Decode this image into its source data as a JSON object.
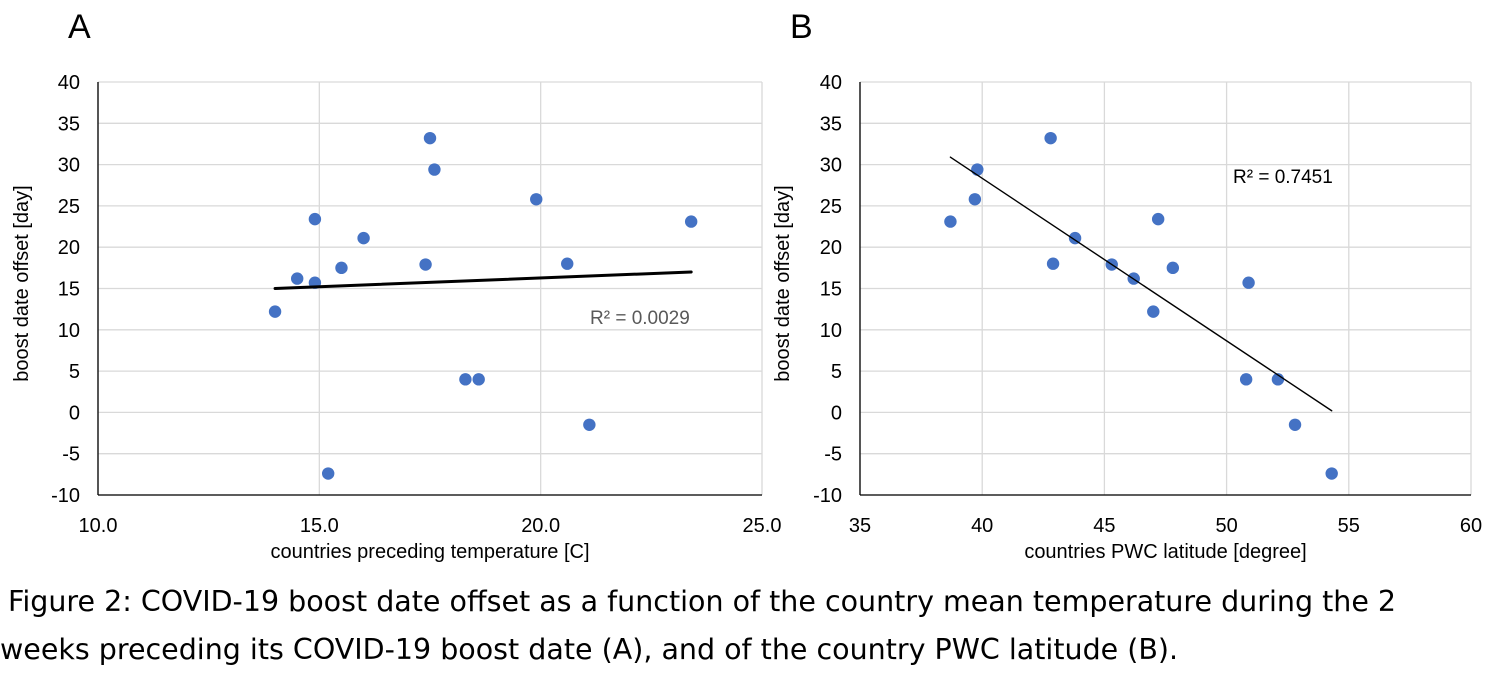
{
  "colors": {
    "point": "#4472C4",
    "grid": "#D9D9D9",
    "axis": "#000000",
    "trend": "#000000",
    "r2_text_a": "#595959",
    "r2_text_b": "#000000"
  },
  "chart_data": [
    {
      "type": "scatter",
      "panel_label": "A",
      "xlabel": "countries preceding temperature [C]",
      "ylabel": "boost date offset [day]",
      "xlim": [
        10,
        25
      ],
      "ylim": [
        -10,
        40
      ],
      "xticks": [
        "10.0",
        "15.0",
        "20.0",
        "25.0"
      ],
      "yticks": [
        "-10",
        "-5",
        "0",
        "5",
        "10",
        "15",
        "20",
        "25",
        "30",
        "35",
        "40"
      ],
      "grid": "vertical and horizontal",
      "points": [
        {
          "x": 14.0,
          "y": 12.2
        },
        {
          "x": 14.5,
          "y": 16.2
        },
        {
          "x": 14.9,
          "y": 15.7
        },
        {
          "x": 14.9,
          "y": 23.4
        },
        {
          "x": 15.2,
          "y": -7.4
        },
        {
          "x": 15.5,
          "y": 17.5
        },
        {
          "x": 16.0,
          "y": 21.1
        },
        {
          "x": 17.4,
          "y": 17.9
        },
        {
          "x": 17.5,
          "y": 33.2
        },
        {
          "x": 17.6,
          "y": 29.4
        },
        {
          "x": 18.3,
          "y": 4.0
        },
        {
          "x": 18.6,
          "y": 4.0
        },
        {
          "x": 19.9,
          "y": 25.8
        },
        {
          "x": 20.6,
          "y": 18.0
        },
        {
          "x": 21.1,
          "y": -1.5
        },
        {
          "x": 23.4,
          "y": 23.1
        }
      ],
      "trendline": {
        "x": [
          14.0,
          23.4
        ],
        "y": [
          15.0,
          17.0
        ]
      },
      "r_squared_label": "R² = 0.0029"
    },
    {
      "type": "scatter",
      "panel_label": "B",
      "xlabel": "countries PWC latitude [degree]",
      "ylabel": "boost date offset [day]",
      "xlim": [
        35,
        60
      ],
      "ylim": [
        -10,
        40
      ],
      "xticks": [
        "35",
        "40",
        "45",
        "50",
        "55",
        "60"
      ],
      "yticks": [
        "-10",
        "-5",
        "0",
        "5",
        "10",
        "15",
        "20",
        "25",
        "30",
        "35",
        "40"
      ],
      "grid": "vertical and horizontal",
      "points": [
        {
          "x": 38.7,
          "y": 23.1
        },
        {
          "x": 39.7,
          "y": 25.8
        },
        {
          "x": 39.8,
          "y": 29.4
        },
        {
          "x": 42.8,
          "y": 33.2
        },
        {
          "x": 42.9,
          "y": 18.0
        },
        {
          "x": 43.8,
          "y": 21.1
        },
        {
          "x": 45.3,
          "y": 17.9
        },
        {
          "x": 46.2,
          "y": 16.2
        },
        {
          "x": 47.0,
          "y": 12.2
        },
        {
          "x": 47.2,
          "y": 23.4
        },
        {
          "x": 47.8,
          "y": 17.5
        },
        {
          "x": 50.8,
          "y": 4.0
        },
        {
          "x": 50.9,
          "y": 15.7
        },
        {
          "x": 52.1,
          "y": 4.0
        },
        {
          "x": 52.8,
          "y": -1.5
        },
        {
          "x": 54.3,
          "y": -7.4
        }
      ],
      "trendline": {
        "x": [
          38.7,
          54.3
        ],
        "y": [
          30.9,
          0.2
        ]
      },
      "r_squared_label": "R² = 0.7451"
    }
  ],
  "caption": {
    "line1": "Figure 2: COVID-19 boost date offset as a function of the country mean temperature during the 2",
    "line2": "weeks preceding its COVID-19 boost date (A), and of the country PWC latitude (B)."
  }
}
